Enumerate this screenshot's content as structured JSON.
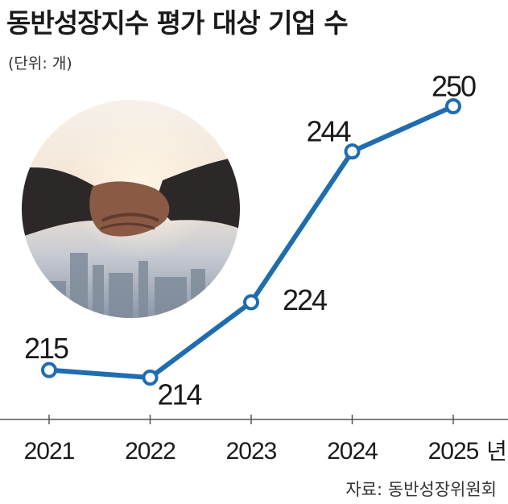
{
  "title": "동반성장지수 평가 대상 기업 수",
  "unit_label": "(단위: 개)",
  "source": "자료: 동반성장위원회",
  "x_suffix": "년",
  "colors": {
    "line": "#1f6db0",
    "axis": "#555555",
    "text": "#1a1a1a"
  },
  "photo_subject": "handshake-over-city-skyline",
  "chart_data": {
    "type": "line",
    "categories": [
      "2021",
      "2022",
      "2023",
      "2024",
      "2025"
    ],
    "values": [
      215,
      214,
      224,
      244,
      250
    ],
    "title": "동반성장지수 평가 대상 기업 수",
    "ylabel": "",
    "grid": false,
    "legend": "none"
  }
}
